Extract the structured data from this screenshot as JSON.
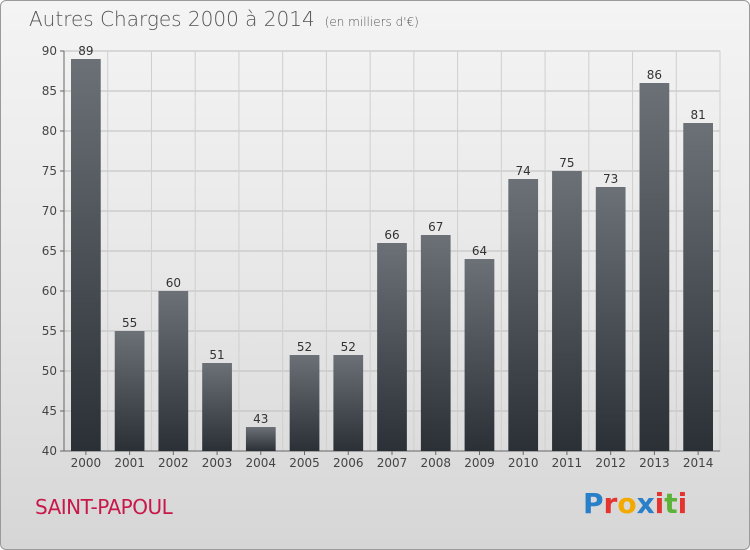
{
  "title": "Autres Charges 2000 à 2014",
  "subtitle": "(en milliers d'€)",
  "commune": "SAINT-PAPOUL",
  "logo": {
    "text": "Proxiti",
    "letters": [
      {
        "ch": "P",
        "color": "#2a7fc9"
      },
      {
        "ch": "r",
        "color": "#e3342f"
      },
      {
        "ch": "o",
        "color": "#f2a900"
      },
      {
        "ch": "x",
        "color": "#2a7fc9"
      },
      {
        "ch": "i",
        "color": "#e3342f"
      },
      {
        "ch": "t",
        "color": "#5cb338"
      },
      {
        "ch": "i",
        "color": "#e3342f"
      }
    ]
  },
  "chart_data": {
    "type": "bar",
    "title": "Autres Charges 2000 à 2014",
    "ylabel": "",
    "xlabel": "",
    "categories": [
      "2000",
      "2001",
      "2002",
      "2003",
      "2004",
      "2005",
      "2006",
      "2007",
      "2008",
      "2009",
      "2010",
      "2011",
      "2012",
      "2013",
      "2014"
    ],
    "values": [
      89,
      55,
      60,
      51,
      43,
      52,
      52,
      66,
      67,
      64,
      74,
      75,
      73,
      86,
      81
    ],
    "ylim": [
      40,
      90
    ],
    "yticks": [
      40,
      45,
      50,
      55,
      60,
      65,
      70,
      75,
      80,
      85,
      90
    ],
    "grid": true,
    "bar_color_top": "#6b7176",
    "bar_color_bottom": "#2a3035"
  }
}
